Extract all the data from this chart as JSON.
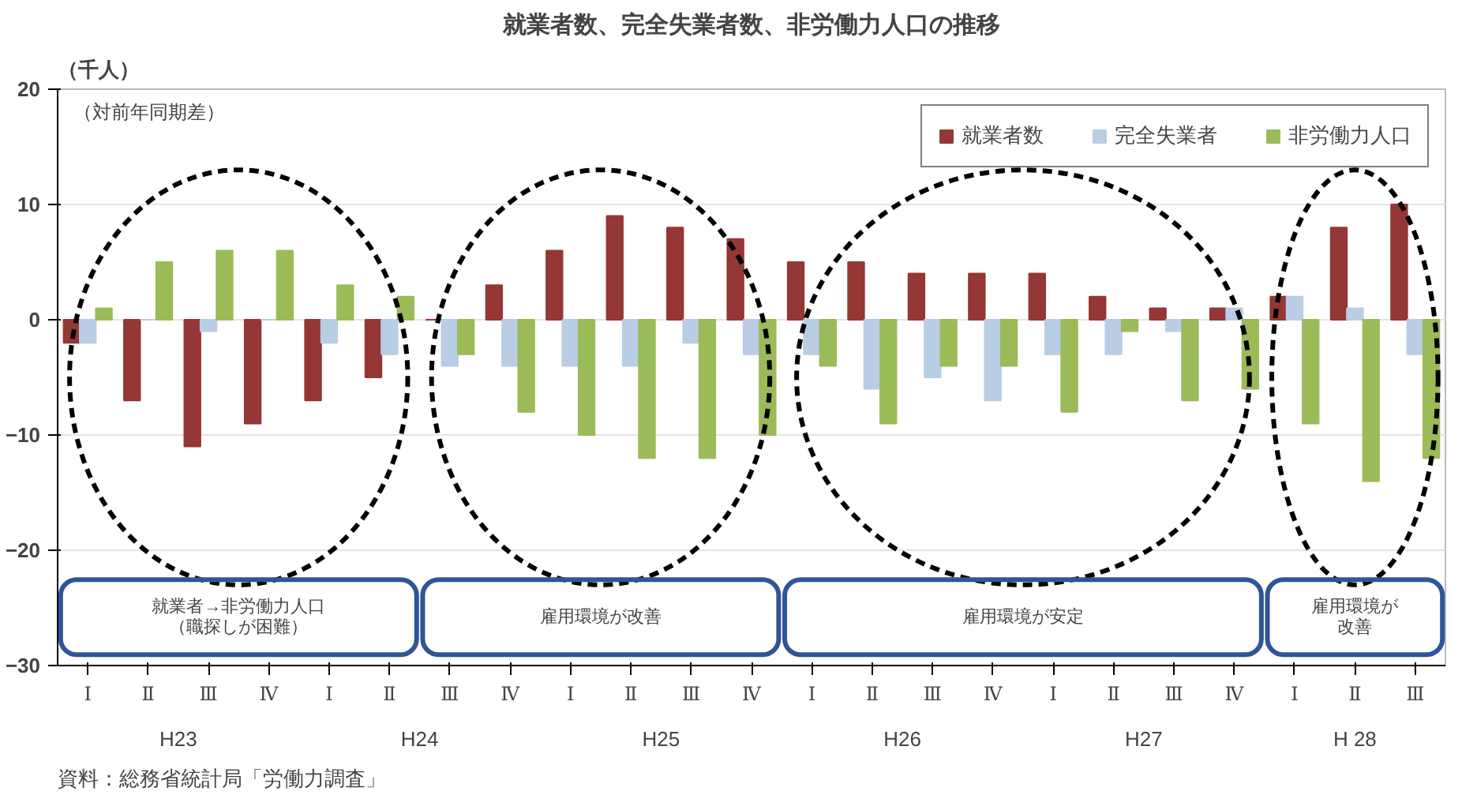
{
  "chart_data": {
    "type": "bar",
    "title": "就業者数、完全失業者数、非労働力人口の推移",
    "subtitle": "（対前年同期差）",
    "ylabel": "（千人）",
    "categories": [
      "Ⅰ",
      "Ⅱ",
      "Ⅲ",
      "Ⅳ",
      "Ⅰ",
      "Ⅱ",
      "Ⅲ",
      "Ⅳ",
      "Ⅰ",
      "Ⅱ",
      "Ⅲ",
      "Ⅳ",
      "Ⅰ",
      "Ⅱ",
      "Ⅲ",
      "Ⅳ",
      "Ⅰ",
      "Ⅱ",
      "Ⅲ",
      "Ⅳ",
      "Ⅰ",
      "Ⅱ",
      "Ⅲ"
    ],
    "series": [
      {
        "name": "就業者数",
        "color": "#953735",
        "values": [
          -2,
          -7,
          -11,
          -9,
          -7,
          -5,
          0,
          3,
          6,
          9,
          8,
          7,
          5,
          5,
          4,
          4,
          4,
          2,
          1,
          1,
          2,
          8,
          10
        ]
      },
      {
        "name": "完全失業者",
        "color": "#b9cde5",
        "values": [
          -2,
          0,
          -1,
          0,
          -2,
          -3,
          -4,
          -4,
          -4,
          -4,
          -2,
          -3,
          -3,
          -6,
          -5,
          -7,
          -3,
          -3,
          -1,
          1,
          2,
          1,
          -3
        ]
      },
      {
        "name": "非労働力人口",
        "color": "#9bbb59",
        "values": [
          1,
          5,
          6,
          6,
          3,
          2,
          -3,
          -8,
          -10,
          -12,
          -12,
          -10,
          -4,
          -9,
          -4,
          -4,
          -8,
          -1,
          -7,
          -6,
          -9,
          -14,
          -12
        ]
      }
    ],
    "ylim": [
      -30,
      20
    ],
    "yticks": [
      -30,
      -20,
      -10,
      0,
      10,
      20
    ],
    "grid": "y",
    "legend": "top right",
    "annotations": [
      "就業者→非労働力人口",
      "（職探しが困難）",
      "雇用環境が改善",
      "雇用環境が安定",
      "雇用環境が",
      "改善",
      "H23",
      "H24",
      "H25",
      "H26",
      "H27",
      "H 28",
      "資料：総務省統計局「労働力調査」"
    ]
  }
}
